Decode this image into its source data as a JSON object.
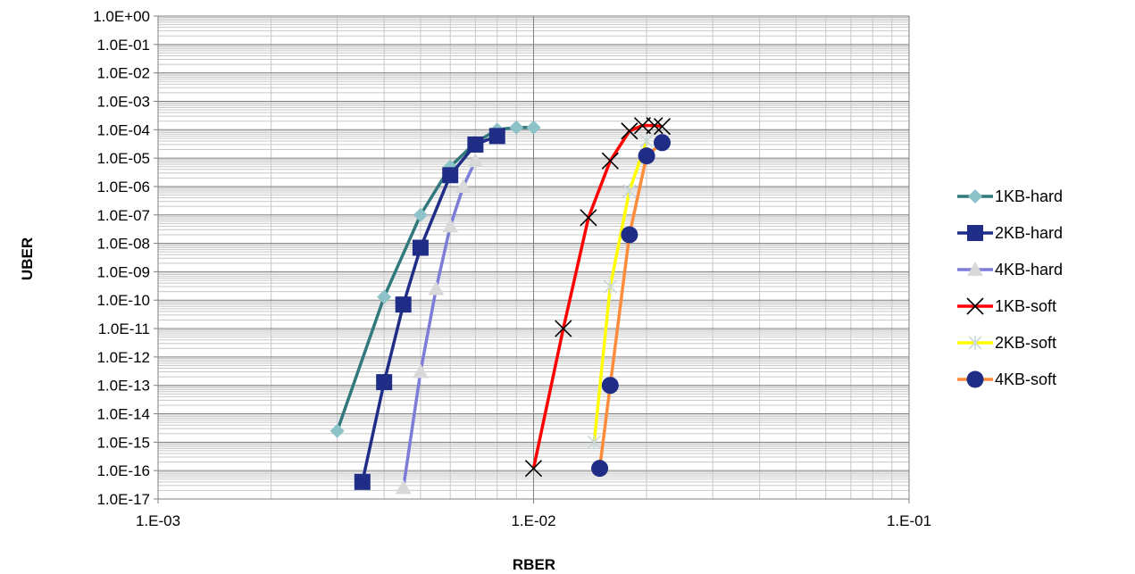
{
  "chart_data": {
    "type": "scatter",
    "x_scale": "log",
    "y_scale": "log",
    "xlabel": "RBER",
    "ylabel": "UBER",
    "xlim": [
      0.001,
      0.1
    ],
    "ylim": [
      1e-17,
      1
    ],
    "x_ticks": [
      "1.E-03",
      "1.E-02",
      "1.E-01"
    ],
    "y_ticks": [
      "1.0E+00",
      "1.0E-01",
      "1.0E-02",
      "1.0E-03",
      "1.0E-04",
      "1.0E-05",
      "1.0E-06",
      "1.0E-07",
      "1.0E-08",
      "1.0E-09",
      "1.0E-10",
      "1.0E-11",
      "1.0E-12",
      "1.0E-13",
      "1.0E-14",
      "1.0E-15",
      "1.0E-16",
      "1.0E-17"
    ],
    "grid": true,
    "legend_position": "right",
    "series": [
      {
        "name": "1KB-hard",
        "color": "#31797D",
        "marker_color": "#8DC3C8",
        "marker": "diamond",
        "x": [
          0.003,
          0.004,
          0.005,
          0.006,
          0.007,
          0.008,
          0.009,
          0.01
        ],
        "y": [
          2.5e-15,
          1.3e-10,
          1e-07,
          5e-06,
          3.5e-05,
          0.0001,
          0.00012,
          0.00012
        ]
      },
      {
        "name": "2KB-hard",
        "color": "#1F2D86",
        "marker_color": "#1F2D86",
        "marker": "square",
        "x": [
          0.0035,
          0.004,
          0.0045,
          0.005,
          0.006,
          0.007,
          0.008
        ],
        "y": [
          4e-17,
          1.3e-13,
          7e-11,
          7e-09,
          2.5e-06,
          3e-05,
          6e-05
        ]
      },
      {
        "name": "4KB-hard",
        "color": "#7D7DD8",
        "marker_color": "#D9D9D9",
        "marker": "triangle",
        "x": [
          0.0045,
          0.005,
          0.0055,
          0.006,
          0.0065,
          0.007
        ],
        "y": [
          2.5e-17,
          3e-13,
          2.5e-10,
          4e-08,
          1e-06,
          8e-06
        ]
      },
      {
        "name": "1KB-soft",
        "color": "#FF0000",
        "marker_color": "#000000",
        "marker": "x",
        "x": [
          0.01,
          0.012,
          0.014,
          0.016,
          0.018,
          0.0195,
          0.021,
          0.022
        ],
        "y": [
          1.2e-16,
          1e-11,
          8e-08,
          8e-06,
          9e-05,
          0.00014,
          0.00014,
          0.00013
        ]
      },
      {
        "name": "2KB-soft",
        "color": "#FFFF00",
        "marker_color": "#C8D8DA",
        "marker": "star",
        "x": [
          0.0145,
          0.016,
          0.018,
          0.02
        ],
        "y": [
          1e-15,
          3e-10,
          7e-07,
          4e-05
        ]
      },
      {
        "name": "4KB-soft",
        "color": "#FF8C3A",
        "marker_color": "#1F2D86",
        "marker": "circle",
        "x": [
          0.015,
          0.016,
          0.018,
          0.02,
          0.022
        ],
        "y": [
          1.2e-16,
          1e-13,
          2e-08,
          1.2e-05,
          3.5e-05
        ]
      }
    ]
  }
}
